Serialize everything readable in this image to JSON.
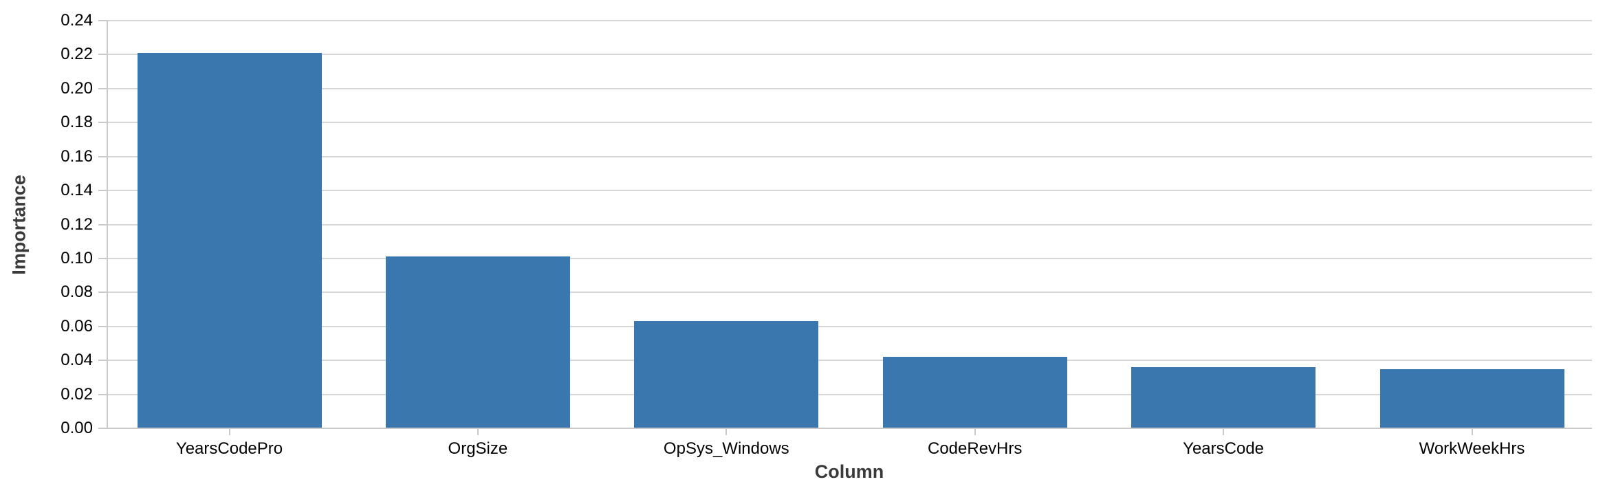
{
  "chart_data": {
    "type": "bar",
    "title": "",
    "xlabel": "Column",
    "ylabel": "Importance",
    "categories": [
      "YearsCodePro",
      "OrgSize",
      "OpSys_Windows",
      "CodeRevHrs",
      "YearsCode",
      "WorkWeekHrs"
    ],
    "values": [
      0.221,
      0.101,
      0.063,
      0.042,
      0.036,
      0.035
    ],
    "ylim": [
      0.0,
      0.24
    ],
    "y_ticks": [
      "0.00",
      "0.02",
      "0.04",
      "0.06",
      "0.08",
      "0.10",
      "0.12",
      "0.14",
      "0.16",
      "0.18",
      "0.20",
      "0.22",
      "0.24"
    ],
    "grid": "horizontal",
    "legend": "none",
    "bar_color": "#3b77af",
    "gridline_color": "#d6d6d6",
    "spine_color": "#c9c9c9",
    "tick_label_color": "#000000",
    "axis_title_color": "#3a3a3a"
  }
}
